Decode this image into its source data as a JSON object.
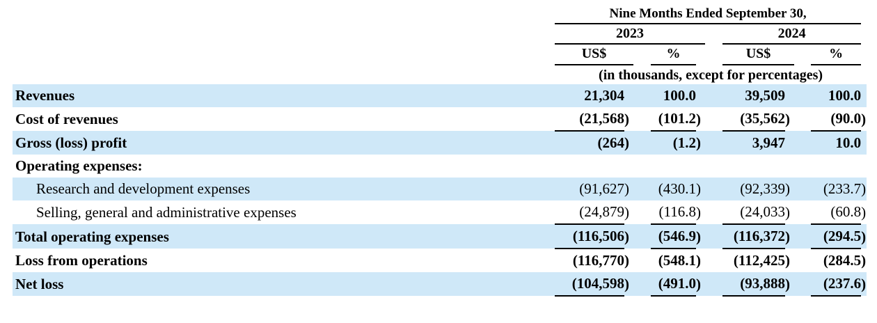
{
  "table": {
    "period_header": "Nine Months Ended September 30,",
    "year_groups": [
      {
        "year": "2023",
        "subcolumns": [
          "US$",
          "%"
        ]
      },
      {
        "year": "2024",
        "subcolumns": [
          "US$",
          "%"
        ]
      }
    ],
    "units_note": "(in thousands, except for percentages)",
    "colors": {
      "row_shade": "#cfe8f8",
      "rule": "#000000",
      "text": "#000000"
    },
    "rows": [
      {
        "label": "Revenues",
        "bold": true,
        "indent": false,
        "shaded": true,
        "underline": false,
        "values": [
          "21,304",
          "100.0",
          "39,509",
          "100.0"
        ]
      },
      {
        "label": "Cost of revenues",
        "bold": true,
        "indent": false,
        "shaded": false,
        "underline": true,
        "values": [
          "(21,568)",
          "(101.2)",
          "(35,562)",
          "(90.0)"
        ]
      },
      {
        "label": "Gross (loss) profit",
        "bold": true,
        "indent": false,
        "shaded": true,
        "underline": false,
        "values": [
          "(264)",
          "(1.2)",
          "3,947",
          "10.0"
        ]
      },
      {
        "label": "Operating expenses:",
        "bold": true,
        "indent": false,
        "shaded": false,
        "underline": false,
        "values": [
          "",
          "",
          "",
          ""
        ]
      },
      {
        "label": "Research and development expenses",
        "bold": false,
        "indent": true,
        "shaded": true,
        "underline": false,
        "values": [
          "(91,627)",
          "(430.1)",
          "(92,339)",
          "(233.7)"
        ]
      },
      {
        "label": "Selling, general and administrative expenses",
        "bold": false,
        "indent": true,
        "shaded": false,
        "underline": true,
        "values": [
          "(24,879)",
          "(116.8)",
          "(24,033)",
          "(60.8)"
        ]
      },
      {
        "label": "Total operating expenses",
        "bold": true,
        "indent": false,
        "shaded": true,
        "underline": true,
        "values": [
          "(116,506)",
          "(546.9)",
          "(116,372)",
          "(294.5)"
        ]
      },
      {
        "label": "Loss from operations",
        "bold": true,
        "indent": false,
        "shaded": false,
        "underline": false,
        "values": [
          "(116,770)",
          "(548.1)",
          "(112,425)",
          "(284.5)"
        ]
      },
      {
        "label": "Net loss",
        "bold": true,
        "indent": false,
        "shaded": true,
        "underline": true,
        "values": [
          "(104,598)",
          "(491.0)",
          "(93,888)",
          "(237.6)"
        ]
      }
    ]
  }
}
